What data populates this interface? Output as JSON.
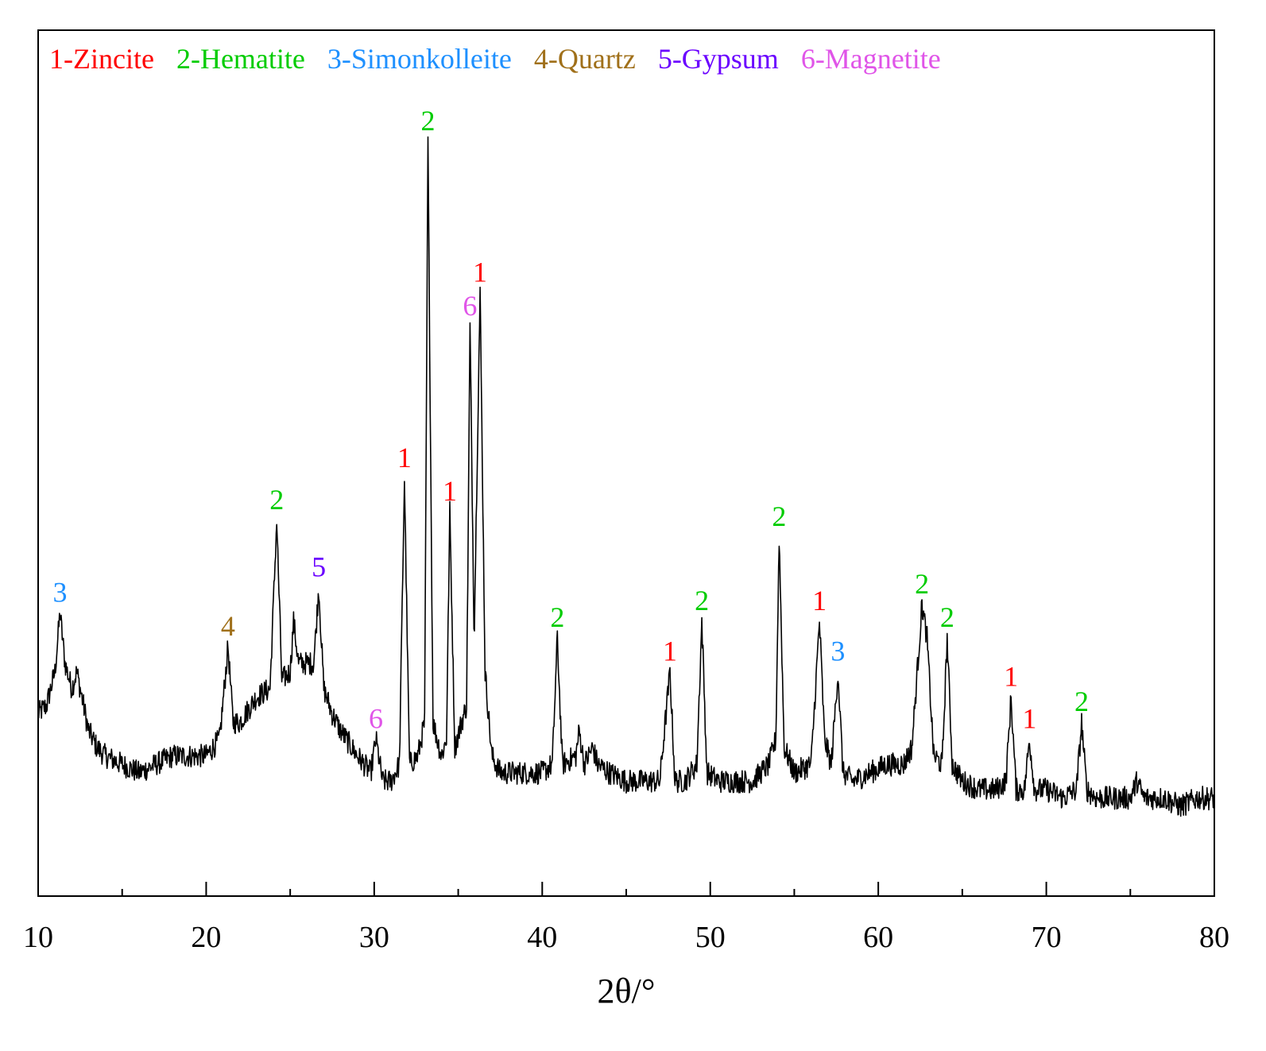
{
  "chart_data": {
    "type": "line",
    "xlabel": "2θ/°",
    "ylabel": "",
    "xlim": [
      10,
      80
    ],
    "xticks": [
      10,
      20,
      30,
      40,
      50,
      60,
      70,
      80
    ],
    "y_axis_labels_shown": false,
    "grid": false,
    "legend_position": "top, inside plot",
    "legend": [
      {
        "id": "1",
        "text": "1-Zincite",
        "color": "#ff0000"
      },
      {
        "id": "2",
        "text": "2-Hematite",
        "color": "#00cc00"
      },
      {
        "id": "3",
        "text": "3-Simonkolleite",
        "color": "#1e90ff"
      },
      {
        "id": "4",
        "text": "4-Quartz",
        "color": "#a0701a"
      },
      {
        "id": "5",
        "text": "5-Gypsum",
        "color": "#6a00ff"
      },
      {
        "id": "6",
        "text": "6-Magnetite",
        "color": "#e055e8"
      }
    ],
    "peaks": [
      {
        "x": 11.3,
        "y": 31,
        "label": "3"
      },
      {
        "x": 21.3,
        "y": 27,
        "label": "4"
      },
      {
        "x": 24.2,
        "y": 42,
        "label": "2"
      },
      {
        "x": 26.7,
        "y": 34,
        "label": "5"
      },
      {
        "x": 30.1,
        "y": 16,
        "label": "6"
      },
      {
        "x": 31.8,
        "y": 47,
        "label": "1"
      },
      {
        "x": 33.2,
        "y": 87,
        "label": "2"
      },
      {
        "x": 34.5,
        "y": 43,
        "label": "1"
      },
      {
        "x": 35.7,
        "y": 65,
        "label": "6"
      },
      {
        "x": 36.3,
        "y": 69,
        "label": "1"
      },
      {
        "x": 40.9,
        "y": 28,
        "label": "2"
      },
      {
        "x": 47.6,
        "y": 24,
        "label": "1"
      },
      {
        "x": 49.5,
        "y": 30,
        "label": "2"
      },
      {
        "x": 54.1,
        "y": 40,
        "label": "2"
      },
      {
        "x": 56.5,
        "y": 30,
        "label": "1"
      },
      {
        "x": 57.6,
        "y": 24,
        "label": "3"
      },
      {
        "x": 62.6,
        "y": 32,
        "label": "2"
      },
      {
        "x": 64.1,
        "y": 28,
        "label": "2"
      },
      {
        "x": 67.9,
        "y": 21,
        "label": "1"
      },
      {
        "x": 69.0,
        "y": 16,
        "label": "1"
      },
      {
        "x": 72.1,
        "y": 18,
        "label": "2"
      }
    ],
    "pattern": [
      [
        10.0,
        19
      ],
      [
        10.5,
        20
      ],
      [
        11.0,
        24
      ],
      [
        11.3,
        31
      ],
      [
        11.6,
        25
      ],
      [
        12.0,
        22
      ],
      [
        12.3,
        24
      ],
      [
        12.7,
        20
      ],
      [
        13.0,
        17
      ],
      [
        13.5,
        15
      ],
      [
        14.0,
        14
      ],
      [
        15.0,
        13
      ],
      [
        16.0,
        12
      ],
      [
        17.0,
        13
      ],
      [
        18.0,
        14
      ],
      [
        19.0,
        14
      ],
      [
        20.0,
        14
      ],
      [
        20.8,
        16
      ],
      [
        21.3,
        27
      ],
      [
        21.6,
        18
      ],
      [
        22.0,
        18
      ],
      [
        23.0,
        21
      ],
      [
        23.8,
        22
      ],
      [
        24.2,
        42
      ],
      [
        24.5,
        23
      ],
      [
        25.0,
        24
      ],
      [
        25.2,
        30
      ],
      [
        25.5,
        25
      ],
      [
        26.0,
        25
      ],
      [
        26.4,
        25
      ],
      [
        26.7,
        34
      ],
      [
        27.0,
        22
      ],
      [
        27.5,
        19
      ],
      [
        28.0,
        17
      ],
      [
        29.0,
        14
      ],
      [
        29.8,
        12
      ],
      [
        30.1,
        16
      ],
      [
        30.5,
        11
      ],
      [
        31.0,
        11
      ],
      [
        31.5,
        13
      ],
      [
        31.8,
        47
      ],
      [
        32.1,
        13
      ],
      [
        32.6,
        14
      ],
      [
        33.0,
        18
      ],
      [
        33.2,
        87
      ],
      [
        33.5,
        18
      ],
      [
        34.0,
        14
      ],
      [
        34.3,
        16
      ],
      [
        34.5,
        43
      ],
      [
        34.8,
        15
      ],
      [
        35.2,
        18
      ],
      [
        35.5,
        20
      ],
      [
        35.7,
        65
      ],
      [
        35.95,
        28
      ],
      [
        36.3,
        69
      ],
      [
        36.6,
        24
      ],
      [
        37.0,
        14
      ],
      [
        37.5,
        12
      ],
      [
        38.0,
        12
      ],
      [
        39.0,
        12
      ],
      [
        40.0,
        12
      ],
      [
        40.6,
        13
      ],
      [
        40.9,
        28
      ],
      [
        41.2,
        13
      ],
      [
        42.0,
        14
      ],
      [
        42.2,
        17
      ],
      [
        42.5,
        13
      ],
      [
        43.0,
        15
      ],
      [
        43.3,
        13
      ],
      [
        44.0,
        12
      ],
      [
        45.0,
        11
      ],
      [
        46.0,
        11
      ],
      [
        47.0,
        11
      ],
      [
        47.6,
        24
      ],
      [
        47.9,
        11
      ],
      [
        48.5,
        11
      ],
      [
        49.2,
        13
      ],
      [
        49.5,
        30
      ],
      [
        49.8,
        12
      ],
      [
        50.5,
        11
      ],
      [
        51.5,
        11
      ],
      [
        52.5,
        11
      ],
      [
        53.5,
        13
      ],
      [
        53.9,
        16
      ],
      [
        54.1,
        40
      ],
      [
        54.4,
        15
      ],
      [
        55.0,
        12
      ],
      [
        56.0,
        13
      ],
      [
        56.5,
        30
      ],
      [
        56.8,
        16
      ],
      [
        57.2,
        13
      ],
      [
        57.6,
        24
      ],
      [
        57.9,
        12
      ],
      [
        58.5,
        11
      ],
      [
        59.5,
        12
      ],
      [
        60.5,
        13
      ],
      [
        61.5,
        13
      ],
      [
        62.0,
        15
      ],
      [
        62.6,
        32
      ],
      [
        62.9,
        28
      ],
      [
        63.3,
        14
      ],
      [
        63.8,
        13
      ],
      [
        64.1,
        28
      ],
      [
        64.4,
        13
      ],
      [
        65.0,
        11
      ],
      [
        66.0,
        10
      ],
      [
        67.0,
        10
      ],
      [
        67.6,
        11
      ],
      [
        67.9,
        21
      ],
      [
        68.2,
        10
      ],
      [
        68.7,
        10
      ],
      [
        69.0,
        16
      ],
      [
        69.3,
        10
      ],
      [
        70.0,
        10
      ],
      [
        71.0,
        9
      ],
      [
        71.8,
        10
      ],
      [
        72.1,
        18
      ],
      [
        72.4,
        10
      ],
      [
        73.0,
        9
      ],
      [
        74.0,
        9
      ],
      [
        75.0,
        9
      ],
      [
        75.4,
        11
      ],
      [
        75.8,
        9
      ],
      [
        77.0,
        9
      ],
      [
        78.0,
        8
      ],
      [
        79.0,
        9
      ],
      [
        80.0,
        9
      ]
    ]
  }
}
